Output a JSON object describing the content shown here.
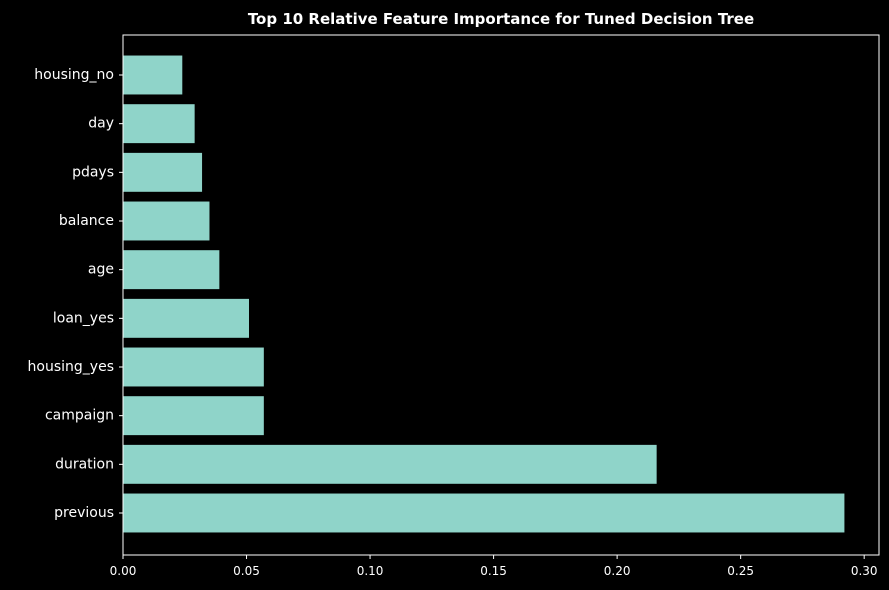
{
  "chart_data": {
    "type": "bar",
    "orientation": "horizontal",
    "title": "Top 10 Relative Feature Importance for Tuned Decision Tree",
    "xlabel": "",
    "ylabel": "",
    "categories": [
      "previous",
      "duration",
      "campaign",
      "housing_yes",
      "loan_yes",
      "age",
      "balance",
      "pdays",
      "day",
      "housing_no"
    ],
    "values": [
      0.292,
      0.216,
      0.057,
      0.057,
      0.051,
      0.039,
      0.035,
      0.032,
      0.029,
      0.024
    ],
    "xlim": [
      0.0,
      0.306
    ],
    "xticks": [
      "0.00",
      "0.05",
      "0.10",
      "0.15",
      "0.20",
      "0.25",
      "0.30"
    ],
    "grid": false,
    "legend": "none",
    "colors": {
      "background": "#000000",
      "bar": "#8fd4c9",
      "axis": "#ffffff",
      "text": "#ffffff"
    }
  }
}
